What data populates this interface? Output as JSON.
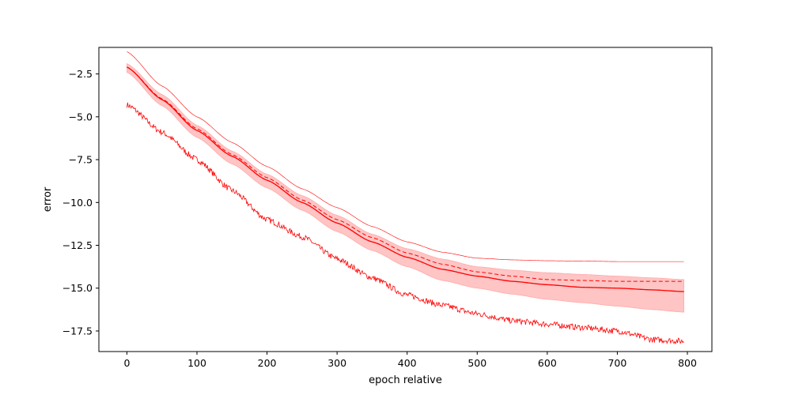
{
  "chart_data": {
    "type": "line",
    "title": "",
    "xlabel": "epoch relative",
    "ylabel": "error",
    "xlim": [
      -40,
      835
    ],
    "ylim": [
      -18.7,
      -0.95
    ],
    "xticks": [
      0,
      100,
      200,
      300,
      400,
      500,
      600,
      700,
      800
    ],
    "xtick_labels": [
      "0",
      "100",
      "200",
      "300",
      "400",
      "500",
      "600",
      "700",
      "800"
    ],
    "yticks": [
      -2.5,
      -5.0,
      -7.5,
      -10.0,
      -12.5,
      -15.0,
      -17.5
    ],
    "ytick_labels": [
      "−2.5",
      "−5.0",
      "−7.5",
      "−10.0",
      "−12.5",
      "−15.0",
      "−17.5"
    ],
    "grid": false,
    "legend": null,
    "colors": {
      "line": "#ff0000",
      "band": "#ffc4c4",
      "band_edge": "#ffaaaa",
      "axes": "#000000"
    },
    "x": [
      0,
      50,
      100,
      150,
      200,
      250,
      300,
      350,
      400,
      450,
      500,
      550,
      600,
      650,
      700,
      750,
      795
    ],
    "series": [
      {
        "style": "solid",
        "width": 1.3,
        "values": [
          -2.1,
          -4.0,
          -5.8,
          -7.3,
          -8.7,
          -10.0,
          -11.2,
          -12.3,
          -13.2,
          -13.9,
          -14.3,
          -14.6,
          -14.8,
          -14.95,
          -15.0,
          -15.1,
          -15.2
        ]
      },
      {
        "style": "dashed",
        "width": 1.0,
        "values": [
          -2.1,
          -3.95,
          -5.7,
          -7.2,
          -8.55,
          -9.85,
          -11.0,
          -12.05,
          -12.95,
          -13.6,
          -14.05,
          -14.3,
          -14.5,
          -14.55,
          -14.6,
          -14.6,
          -14.6
        ]
      },
      {
        "style": "thin",
        "width": 0.6,
        "values": [
          -1.2,
          -3.2,
          -5.0,
          -6.5,
          -7.9,
          -9.2,
          -10.3,
          -11.4,
          -12.3,
          -12.9,
          -13.25,
          -13.35,
          -13.4,
          -13.42,
          -13.45,
          -13.45,
          -13.45
        ]
      },
      {
        "style": "noisy",
        "width": 0.8,
        "values": [
          -4.3,
          -5.9,
          -7.5,
          -9.3,
          -11.0,
          -12.0,
          -13.3,
          -14.4,
          -15.4,
          -16.0,
          -16.5,
          -16.9,
          -17.1,
          -17.3,
          -17.5,
          -18.0,
          -18.1
        ]
      }
    ],
    "band": {
      "upper": [
        -1.9,
        -3.7,
        -5.5,
        -7.0,
        -8.35,
        -9.6,
        -10.75,
        -11.85,
        -12.7,
        -13.3,
        -13.75,
        -13.95,
        -14.1,
        -14.2,
        -14.3,
        -14.4,
        -14.5
      ],
      "lower": [
        -2.4,
        -4.35,
        -6.2,
        -7.75,
        -9.15,
        -10.45,
        -11.7,
        -12.8,
        -13.75,
        -14.55,
        -15.0,
        -15.35,
        -15.65,
        -15.85,
        -16.05,
        -16.25,
        -16.4
      ]
    }
  }
}
